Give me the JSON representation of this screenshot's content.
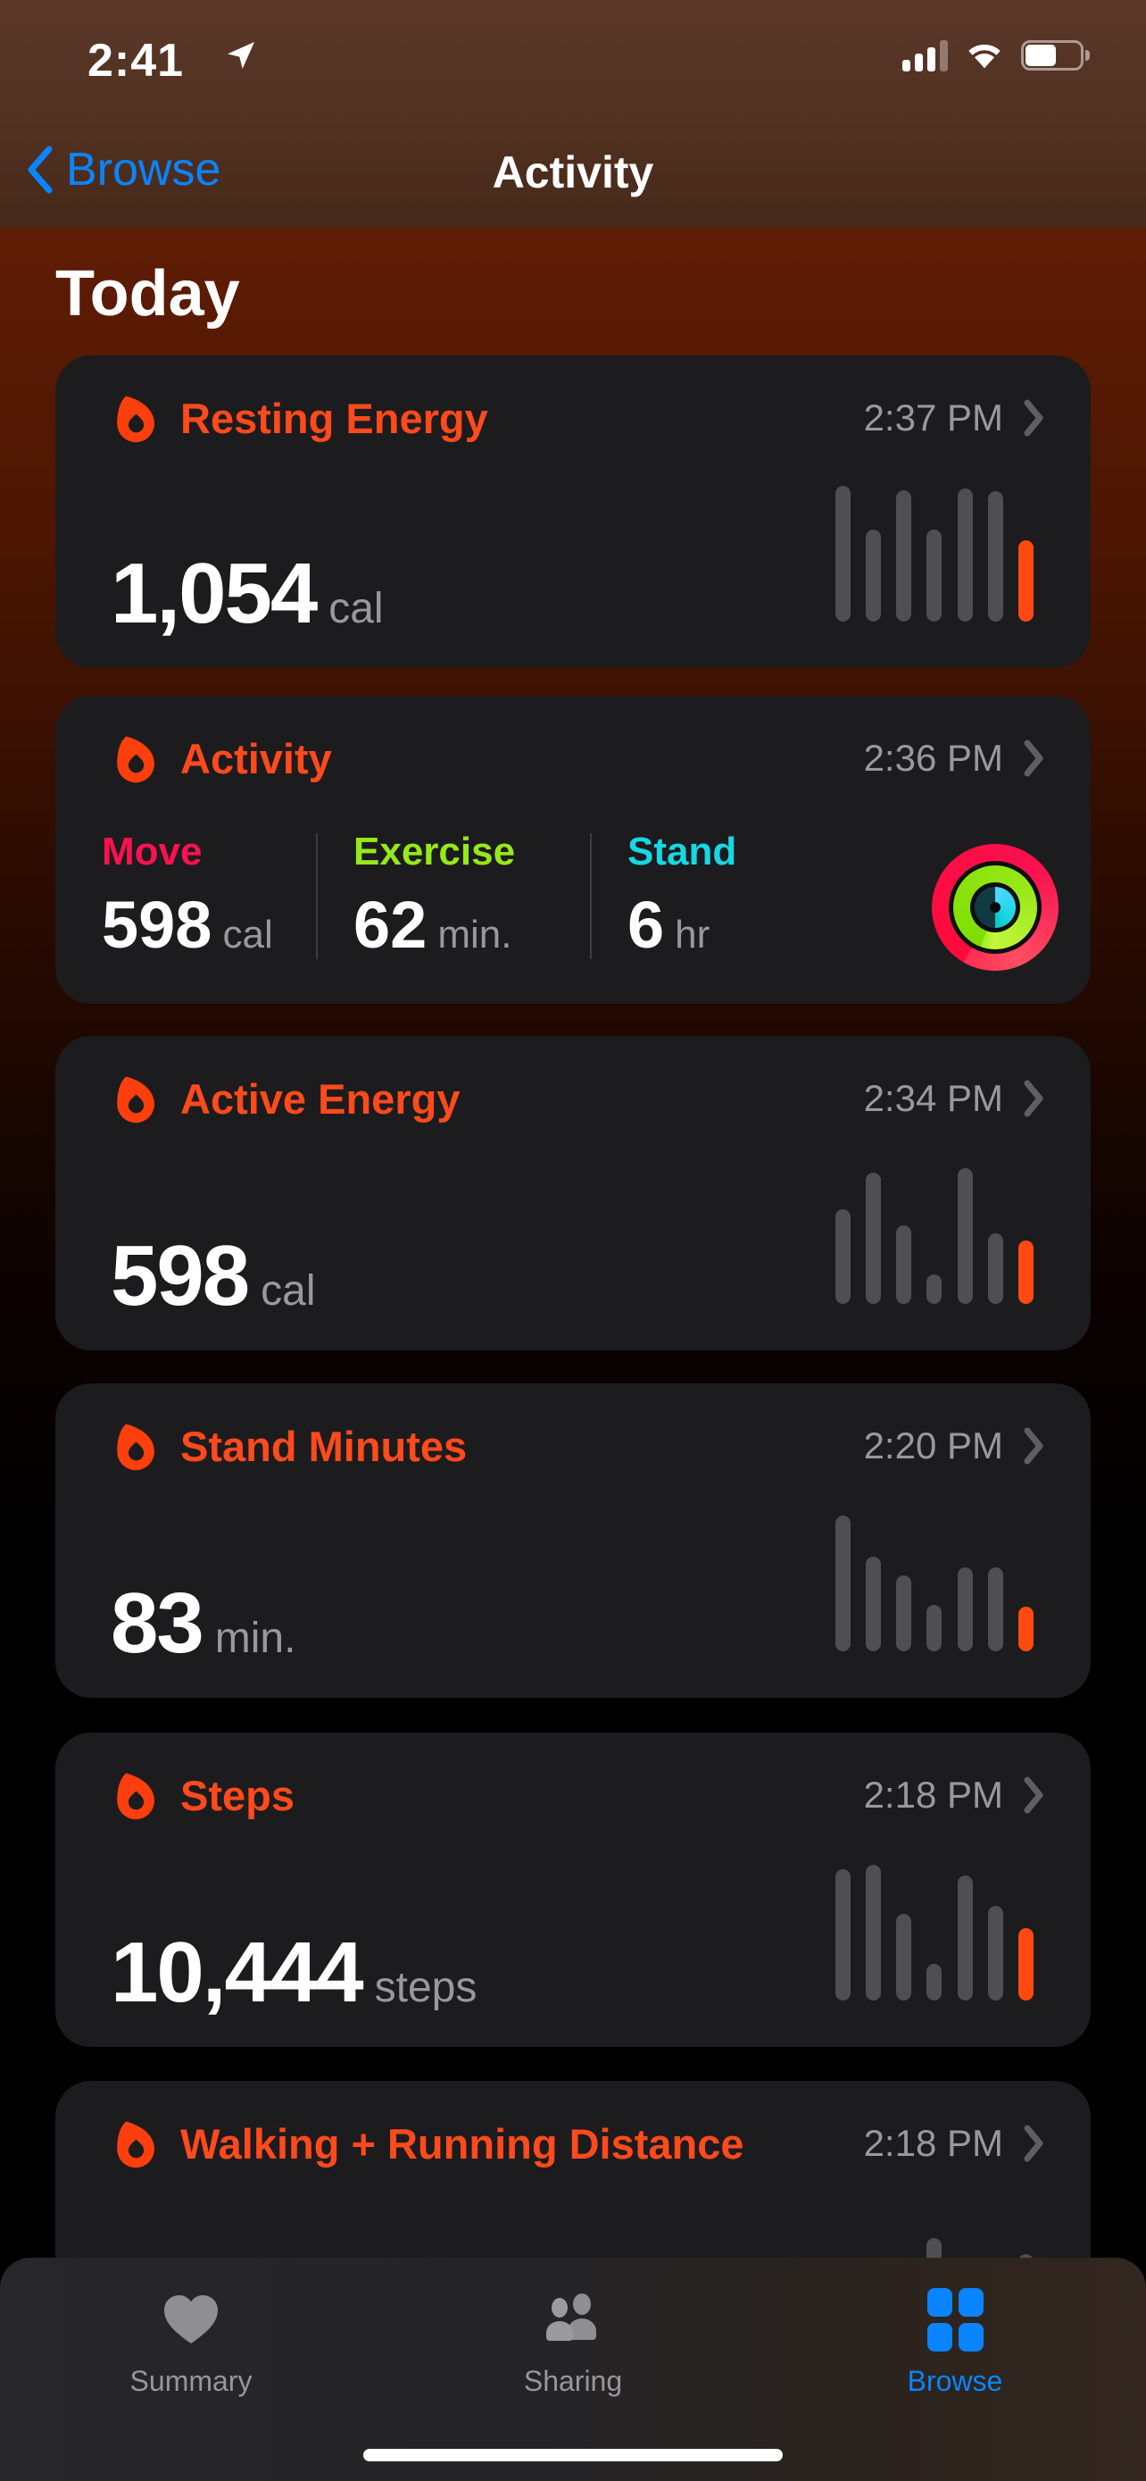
{
  "colors": {
    "accent": "#fe4a1c",
    "flame": "#fd3e0d",
    "blue": "#0a84ff",
    "move": "#fa1150",
    "exercise": "#97e819",
    "stand": "#17d7e4",
    "bar-gray": "#4e4e53",
    "bar-orange": "#fe4a10",
    "bg-red-top": "#5f1c04"
  },
  "status_bar": {
    "time": "2:41"
  },
  "nav": {
    "back_label": "Browse",
    "title": "Activity"
  },
  "page": {
    "section_title": "Today"
  },
  "cards": {
    "resting": {
      "title": "Resting Energy",
      "time": "2:37 PM",
      "value": "1,054",
      "unit": "cal",
      "chart": {
        "type": "bar",
        "bars": [
          100,
          68,
          97,
          68,
          98,
          96,
          60
        ],
        "orange_last": true
      }
    },
    "activity": {
      "title": "Activity",
      "time": "2:36 PM",
      "metrics": [
        {
          "label": "Move",
          "value": "598",
          "unit": "cal"
        },
        {
          "label": "Exercise",
          "value": "62",
          "unit": "min."
        },
        {
          "label": "Stand",
          "value": "6",
          "unit": "hr"
        }
      ]
    },
    "active": {
      "title": "Active Energy",
      "time": "2:34 PM",
      "value": "598",
      "unit": "cal",
      "chart": {
        "type": "bar",
        "bars": [
          70,
          97,
          58,
          22,
          100,
          52,
          47
        ],
        "orange_last": true
      }
    },
    "stand": {
      "title": "Stand Minutes",
      "time": "2:20 PM",
      "value": "83",
      "unit": "min.",
      "chart": {
        "type": "bar",
        "bars": [
          100,
          70,
          56,
          34,
          62,
          62,
          33
        ],
        "orange_last": true
      }
    },
    "steps": {
      "title": "Steps",
      "time": "2:18 PM",
      "value": "10,444",
      "unit": "steps",
      "chart": {
        "type": "bar",
        "bars": [
          97,
          100,
          64,
          27,
          92,
          70,
          53
        ],
        "orange_last": true
      }
    },
    "walking": {
      "title": "Walking + Running Distance",
      "time": "2:18 PM",
      "chart": {
        "type": "bar",
        "bars": [
          0,
          0,
          16,
          42,
          0,
          0,
          30
        ],
        "orange_last": false
      }
    }
  },
  "tab_bar": {
    "items": [
      {
        "label": "Summary",
        "icon": "heart-icon",
        "active": false
      },
      {
        "label": "Sharing",
        "icon": "people-icon",
        "active": false
      },
      {
        "label": "Browse",
        "icon": "grid-icon",
        "active": true
      }
    ]
  }
}
